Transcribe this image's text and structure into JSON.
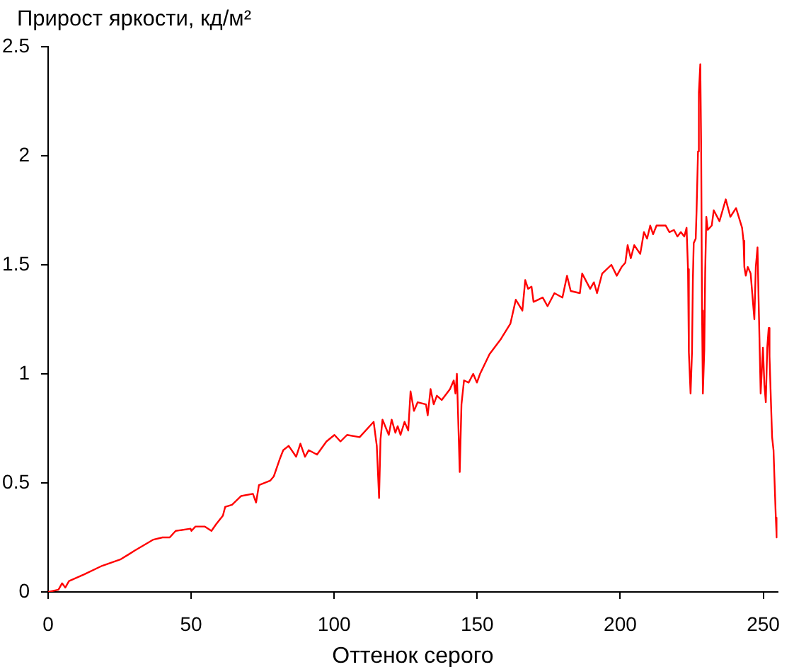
{
  "chart_data": {
    "type": "line",
    "ylabel": "Прирост яркости, кд/м²",
    "xlabel": "Оттенок серого",
    "x": [
      0,
      3.6,
      4.9,
      6,
      7.3,
      12.5,
      18.9,
      25.4,
      27.9,
      30.3,
      36.8,
      40,
      42.5,
      44.6,
      49.8,
      50.1,
      51.5,
      54.7,
      57.1,
      58.7,
      61.1,
      61.9,
      64.3,
      67.5,
      71.6,
      72.7,
      73.7,
      77.6,
      78.9,
      81,
      82.2,
      84.1,
      86.7,
      88.2,
      89.8,
      91.1,
      94,
      97.3,
      100.1,
      102.2,
      104.5,
      108.9,
      113.8,
      114.9,
      115.7,
      116.2,
      116.9,
      119.1,
      120.1,
      121.4,
      122.2,
      123.2,
      124.6,
      125.9,
      126.7,
      127.9,
      129.2,
      132.1,
      132.7,
      133.7,
      134.8,
      135.9,
      137.6,
      140.5,
      141.8,
      142.4,
      142.9,
      143.9,
      144.5,
      145.4,
      147,
      148.6,
      149.9,
      151,
      154.3,
      158.3,
      161.6,
      163.5,
      165.8,
      166.8,
      167.8,
      169,
      169.7,
      172.9,
      174.6,
      177,
      179.8,
      181.4,
      182.7,
      185.9,
      186.7,
      189.5,
      190.8,
      191.9,
      193.7,
      196.9,
      198.8,
      200.5,
      201.8,
      202.6,
      203.7,
      204.9,
      207,
      208.3,
      209.4,
      210.5,
      211.5,
      212.7,
      215.9,
      217.2,
      218.8,
      220,
      221.2,
      222.4,
      223.2,
      223.7,
      224,
      224.6,
      225.1,
      225.4,
      225.7,
      226.4,
      226.7,
      227.2,
      227.5,
      228,
      228.3,
      228.6,
      228.9,
      229.4,
      229.7,
      230.1,
      230.6,
      232,
      232.7,
      234.7,
      236.9,
      238.5,
      240.5,
      242.6,
      243.1,
      243.4,
      243.9,
      244.6,
      245.6,
      246.4,
      246.9,
      247.4,
      248,
      248.4,
      249.1,
      249.9,
      250.4,
      250.9,
      251.4,
      251.9,
      252.2,
      252.7,
      253.1,
      253.6,
      253.9,
      254.4,
      254.7
    ],
    "series": [
      {
        "color": "#ff0000",
        "values": [
          0,
          0.01,
          0.04,
          0.02,
          0.05,
          0.08,
          0.12,
          0.15,
          0.17,
          0.19,
          0.24,
          0.25,
          0.25,
          0.28,
          0.29,
          0.28,
          0.3,
          0.3,
          0.28,
          0.31,
          0.35,
          0.39,
          0.4,
          0.44,
          0.45,
          0.41,
          0.49,
          0.51,
          0.53,
          0.61,
          0.65,
          0.67,
          0.62,
          0.68,
          0.62,
          0.65,
          0.63,
          0.69,
          0.72,
          0.69,
          0.72,
          0.71,
          0.78,
          0.67,
          0.43,
          0.7,
          0.79,
          0.72,
          0.79,
          0.73,
          0.76,
          0.72,
          0.78,
          0.74,
          0.92,
          0.83,
          0.87,
          0.86,
          0.81,
          0.93,
          0.86,
          0.9,
          0.88,
          0.93,
          0.97,
          0.91,
          1,
          0.55,
          0.86,
          0.97,
          0.96,
          1,
          0.96,
          1,
          1.09,
          1.16,
          1.23,
          1.34,
          1.29,
          1.43,
          1.39,
          1.4,
          1.33,
          1.35,
          1.31,
          1.37,
          1.35,
          1.45,
          1.38,
          1.37,
          1.46,
          1.39,
          1.42,
          1.37,
          1.46,
          1.5,
          1.45,
          1.49,
          1.51,
          1.59,
          1.53,
          1.59,
          1.55,
          1.65,
          1.62,
          1.68,
          1.64,
          1.68,
          1.68,
          1.65,
          1.66,
          1.63,
          1.65,
          1.63,
          1.67,
          1.48,
          1.1,
          0.91,
          1.1,
          1.43,
          1.6,
          1.62,
          1.75,
          2.02,
          2.29,
          2.42,
          2.04,
          1.29,
          0.91,
          1.11,
          1.46,
          1.72,
          1.66,
          1.68,
          1.75,
          1.7,
          1.8,
          1.72,
          1.76,
          1.67,
          1.61,
          1.49,
          1.45,
          1.49,
          1.46,
          1.33,
          1.25,
          1.49,
          1.58,
          1.33,
          0.91,
          1.12,
          0.95,
          0.87,
          1.12,
          1.21,
          1.08,
          0.87,
          0.71,
          0.65,
          0.53,
          0.34,
          0.25
        ]
      }
    ],
    "xlim": [
      0,
      255
    ],
    "ylim": [
      0,
      2.5
    ],
    "xticks": [
      0,
      50,
      100,
      150,
      200,
      250
    ],
    "yticks": [
      0,
      0.5,
      1,
      1.5,
      2,
      2.5
    ],
    "grid": false,
    "marker": "none",
    "line_style": "solid"
  }
}
